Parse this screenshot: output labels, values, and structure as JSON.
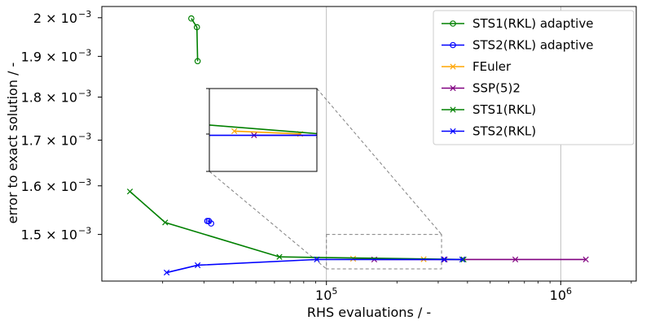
{
  "chart_data": {
    "type": "line",
    "title": "",
    "xlabel": "RHS evaluations  / -",
    "ylabel": "error to exact solution / -",
    "xscale": "log",
    "yscale": "log",
    "xlim": [
      11000,
      2100000
    ],
    "ylim": [
      0.00141,
      0.00203
    ],
    "grid": "vertical major only (x)",
    "legend_location": "upper right",
    "x_tick_labels": [
      {
        "value": 100000,
        "base": "10",
        "exp": "5"
      },
      {
        "value": 1000000,
        "base": "10",
        "exp": "6"
      }
    ],
    "y_tick_labels": [
      {
        "value": 0.0015,
        "mant": "1.5",
        "exp": "−3"
      },
      {
        "value": 0.0016,
        "mant": "1.6",
        "exp": "−3"
      },
      {
        "value": 0.0017,
        "mant": "1.7",
        "exp": "−3"
      },
      {
        "value": 0.0018,
        "mant": "1.8",
        "exp": "−3"
      },
      {
        "value": 0.0019,
        "mant": "1.9",
        "exp": "−3"
      },
      {
        "value": 0.002,
        "mant": "2",
        "exp": "−3"
      }
    ],
    "tick_times": "×",
    "series": [
      {
        "name": "STS1(RKL) adaptive",
        "color": "#008000",
        "marker": "circle",
        "x": [
          26500,
          28000,
          28200
        ],
        "y": [
          0.001998,
          0.001975,
          0.001888
        ]
      },
      {
        "name": "STS2(RKL) adaptive",
        "color": "#0000ff",
        "marker": "circle",
        "x": [
          31000,
          31500,
          32200
        ],
        "y": [
          0.001527,
          0.001527,
          0.001522
        ]
      },
      {
        "name": "FEuler",
        "color": "#ffa500",
        "marker": "x",
        "x": [
          130000,
          260000
        ],
        "y": [
          0.0014525,
          0.0014515
        ]
      },
      {
        "name": "SSP(5)2",
        "color": "#800080",
        "marker": "x",
        "x": [
          160000,
          320000,
          640000,
          1280000
        ],
        "y": [
          0.001451,
          0.001451,
          0.001451,
          0.001451
        ]
      },
      {
        "name": "STS1(RKL)",
        "color": "#008000",
        "marker": "x",
        "x": [
          14500,
          20500,
          63000,
          385000
        ],
        "y": [
          0.001588,
          0.001524,
          0.001456,
          0.001451
        ]
      },
      {
        "name": "STS2(RKL)",
        "color": "#0000ff",
        "marker": "x",
        "x": [
          20800,
          28200,
          91000,
          317000,
          380000
        ],
        "y": [
          0.001426,
          0.00144,
          0.001451,
          0.001451,
          0.001451
        ]
      }
    ],
    "inset": {
      "zoom_xlim": [
        100000,
        310000
      ],
      "zoom_ylim": [
        0.001433,
        0.0015
      ],
      "inset_ylim": [
        0.001438,
        0.001468
      ]
    }
  }
}
